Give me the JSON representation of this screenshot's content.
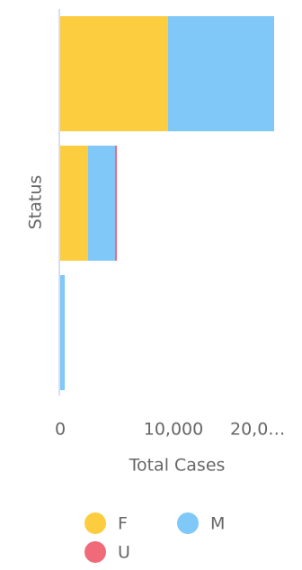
{
  "chart_data": {
    "type": "bar",
    "orientation": "horizontal",
    "stacked": true,
    "categories": [
      null,
      null,
      null
    ],
    "series": [
      {
        "name": "F",
        "color": "#fccd3f",
        "values": [
          9520,
          2460,
          0
        ]
      },
      {
        "name": "M",
        "color": "#80c8f8",
        "values": [
          9370,
          2380,
          400
        ]
      },
      {
        "name": "U",
        "color": "#f06a7a",
        "values": [
          0,
          160,
          0
        ]
      }
    ],
    "xlim": [
      0,
      20000
    ],
    "xticks": [
      0,
      {
        "value": 10000,
        "label": "10,000"
      },
      {
        "value": 20000,
        "label": "20,0…"
      }
    ],
    "xlabel": "Total Cases",
    "ylabel": "Status",
    "legend": "bottom"
  }
}
